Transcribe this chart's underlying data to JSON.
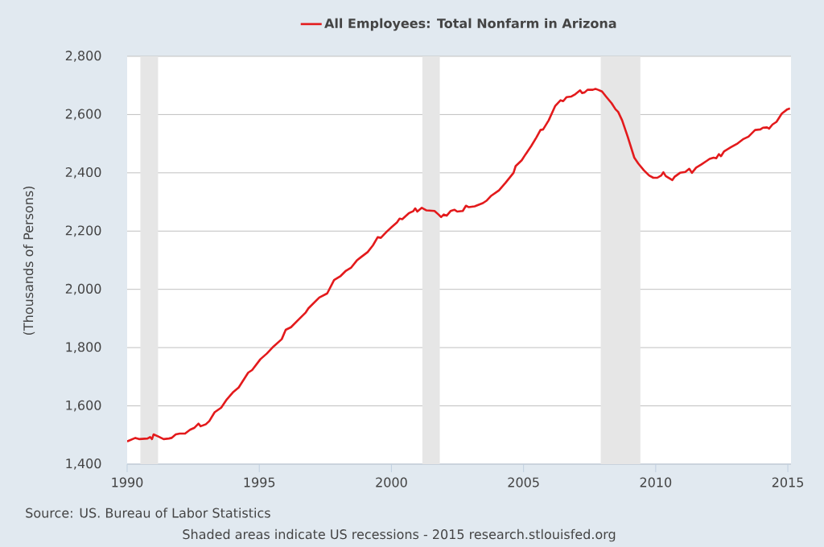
{
  "chart_data": {
    "type": "line",
    "ylabel": "(Thousands of Persons)",
    "annotations": [
      "Source: US. Bureau of Labor Statistics",
      "Shaded areas indicate US recessions - 2015 research.stlouisfed.org"
    ],
    "x": [
      1990.0,
      1990.31,
      1990.45,
      1990.77,
      1990.87,
      1990.94,
      1991.0,
      1991.18,
      1991.38,
      1991.58,
      1991.68,
      1991.84,
      1991.99,
      1992.19,
      1992.38,
      1992.55,
      1992.7,
      1992.78,
      1992.98,
      1993.11,
      1993.31,
      1993.56,
      1993.77,
      1994.02,
      1994.22,
      1994.58,
      1994.73,
      1995.04,
      1995.29,
      1995.54,
      1995.85,
      1996.0,
      1996.2,
      1996.46,
      1996.76,
      1996.86,
      1997.27,
      1997.57,
      1997.83,
      1998.08,
      1998.28,
      1998.48,
      1998.69,
      1998.84,
      1999.1,
      1999.3,
      1999.48,
      1999.6,
      1999.81,
      2000.01,
      2000.21,
      2000.31,
      2000.41,
      2000.67,
      2000.82,
      2000.9,
      2000.98,
      2001.15,
      2001.33,
      2001.63,
      2001.78,
      2001.88,
      2001.98,
      2002.09,
      2002.24,
      2002.39,
      2002.49,
      2002.7,
      2002.82,
      2002.93,
      2003.15,
      2003.46,
      2003.61,
      2003.76,
      2004.07,
      2004.32,
      2004.62,
      2004.7,
      2004.93,
      2005.08,
      2005.29,
      2005.49,
      2005.64,
      2005.74,
      2005.95,
      2006.2,
      2006.4,
      2006.5,
      2006.63,
      2006.81,
      2006.96,
      2007.14,
      2007.21,
      2007.31,
      2007.42,
      2007.62,
      2007.72,
      2007.82,
      2007.97,
      2008.12,
      2008.33,
      2008.48,
      2008.58,
      2008.73,
      2008.94,
      2009.19,
      2009.34,
      2009.55,
      2009.75,
      2009.91,
      2010.06,
      2010.21,
      2010.29,
      2010.38,
      2010.63,
      2010.71,
      2010.92,
      2011.12,
      2011.27,
      2011.37,
      2011.53,
      2011.73,
      2011.93,
      2012.04,
      2012.19,
      2012.29,
      2012.39,
      2012.47,
      2012.59,
      2012.85,
      2013.1,
      2013.3,
      2013.51,
      2013.76,
      2013.96,
      2014.06,
      2014.21,
      2014.29,
      2014.42,
      2014.57,
      2014.77,
      2014.98,
      2015.08
    ],
    "series": [
      {
        "name": "All Employees: Total Nonfarm in Arizona",
        "color": "#e31a1c",
        "values": [
          1478,
          1490,
          1486,
          1488,
          1493,
          1486,
          1502,
          1495,
          1486,
          1488,
          1490,
          1502,
          1505,
          1505,
          1518,
          1525,
          1539,
          1530,
          1537,
          1548,
          1578,
          1594,
          1622,
          1648,
          1663,
          1714,
          1723,
          1760,
          1780,
          1804,
          1829,
          1861,
          1870,
          1894,
          1921,
          1935,
          1972,
          1986,
          2032,
          2046,
          2064,
          2075,
          2099,
          2110,
          2128,
          2151,
          2179,
          2177,
          2197,
          2214,
          2230,
          2243,
          2241,
          2262,
          2268,
          2278,
          2267,
          2280,
          2271,
          2269,
          2257,
          2248,
          2257,
          2253,
          2269,
          2273,
          2267,
          2269,
          2287,
          2282,
          2285,
          2296,
          2305,
          2320,
          2340,
          2366,
          2400,
          2423,
          2443,
          2464,
          2492,
          2522,
          2547,
          2549,
          2580,
          2630,
          2649,
          2646,
          2660,
          2662,
          2670,
          2683,
          2674,
          2676,
          2685,
          2685,
          2688,
          2685,
          2679,
          2662,
          2639,
          2618,
          2609,
          2580,
          2524,
          2452,
          2432,
          2409,
          2391,
          2383,
          2383,
          2391,
          2402,
          2389,
          2375,
          2386,
          2400,
          2403,
          2414,
          2400,
          2418,
          2429,
          2441,
          2448,
          2452,
          2450,
          2464,
          2457,
          2474,
          2488,
          2501,
          2515,
          2524,
          2547,
          2549,
          2555,
          2556,
          2552,
          2566,
          2575,
          2603,
          2618,
          2621
        ]
      }
    ],
    "xlim": [
      1990,
      2015.12
    ],
    "ylim": [
      1400,
      2800
    ],
    "xticks": [
      1990,
      1995,
      2000,
      2005,
      2010,
      2015
    ],
    "yticks": [
      {
        "value": 1400,
        "label": "1,400"
      },
      {
        "value": 1600,
        "label": "1,600"
      },
      {
        "value": 1800,
        "label": "1,800"
      },
      {
        "value": 2000,
        "label": "2,000"
      },
      {
        "value": 2200,
        "label": "2,200"
      },
      {
        "value": 2400,
        "label": "2,400"
      },
      {
        "value": 2600,
        "label": "2,600"
      },
      {
        "value": 2800,
        "label": "2,800"
      }
    ],
    "grid": "y",
    "legend": "top",
    "bands": [
      {
        "axis": "x",
        "from": 1990.5,
        "to": 1991.17,
        "color": "#e6e6e6"
      },
      {
        "axis": "x",
        "from": 2001.17,
        "to": 2001.83,
        "color": "#e6e6e6"
      },
      {
        "axis": "x",
        "from": 2007.92,
        "to": 2009.42,
        "color": "#e6e6e6"
      }
    ]
  }
}
